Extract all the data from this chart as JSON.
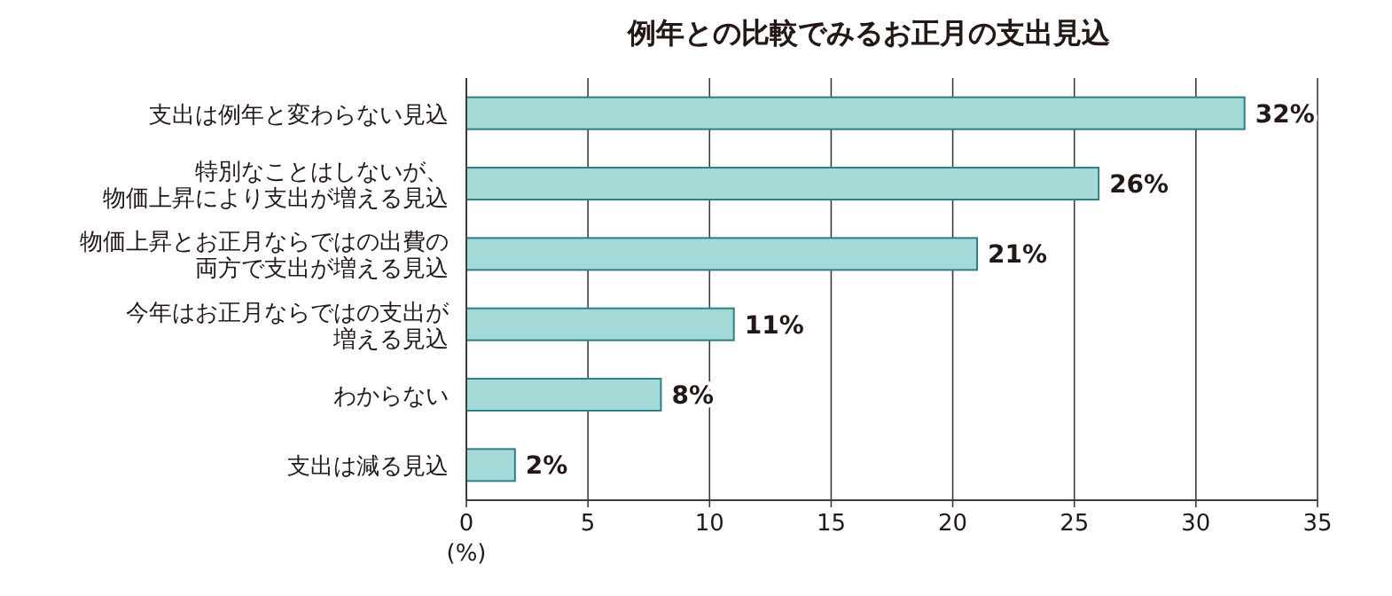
{
  "chart_data": {
    "type": "bar",
    "orientation": "horizontal",
    "title": "例年との比較でみるお正月の支出見込",
    "categories": [
      "支出は例年と変わらない見込",
      "特別なことはしないが、物価上昇により支出が増える見込",
      "物価上昇とお正月ならではの出費の両方で支出が増える見込",
      "今年はお正月ならではの支出が増える見込",
      "わからない",
      "支出は減る見込"
    ],
    "values": [
      32,
      26,
      21,
      11,
      8,
      2
    ],
    "value_labels": [
      "32%",
      "26%",
      "21%",
      "11%",
      "8%",
      "2%"
    ],
    "color": "#a3d9d6",
    "xlim": [
      0,
      35
    ],
    "xticks": [
      0,
      5,
      10,
      15,
      20,
      25,
      30,
      35
    ],
    "xlabel": "(%)",
    "grid": "x"
  }
}
